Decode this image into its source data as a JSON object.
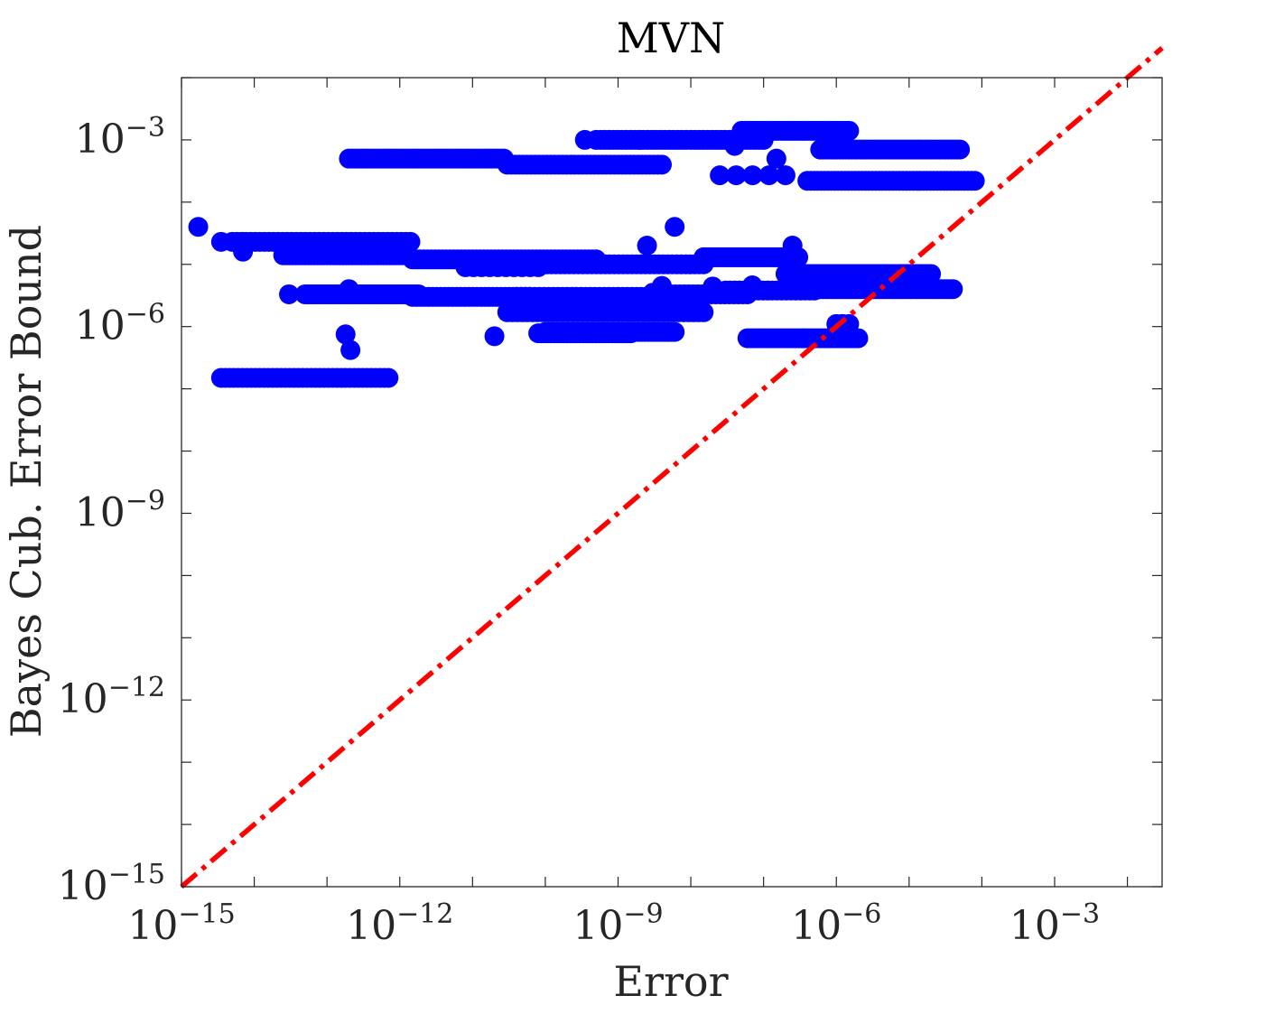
{
  "chart_data": {
    "type": "scatter",
    "title": "MVN",
    "xlabel": "Error",
    "ylabel": "Bayes Cub. Error Bound",
    "x_scale": "log",
    "y_scale": "log",
    "xlim": [
      1e-15,
      0.03
    ],
    "ylim": [
      1e-15,
      0.01
    ],
    "x_major_ticks": [
      {
        "value": 1e-15,
        "base": "10",
        "exp": "−15"
      },
      {
        "value": 1e-12,
        "base": "10",
        "exp": "−12"
      },
      {
        "value": 1e-09,
        "base": "10",
        "exp": "−9"
      },
      {
        "value": 1e-06,
        "base": "10",
        "exp": "−6"
      },
      {
        "value": 0.001,
        "base": "10",
        "exp": "−3"
      }
    ],
    "y_major_ticks": [
      {
        "value": 1e-15,
        "base": "10",
        "exp": "−15"
      },
      {
        "value": 1e-12,
        "base": "10",
        "exp": "−12"
      },
      {
        "value": 1e-09,
        "base": "10",
        "exp": "−9"
      },
      {
        "value": 1e-06,
        "base": "10",
        "exp": "−6"
      },
      {
        "value": 0.001,
        "base": "10",
        "exp": "−3"
      }
    ],
    "grid": false,
    "legend": "none",
    "series": [
      {
        "kind": "scatter",
        "color": "#0000ff",
        "marker": "filled-circle",
        "segments": [
          {
            "x": [
              5e-15,
              1.4e-12
            ],
            "y": 2.3e-05,
            "n": 40
          },
          {
            "x": [
              3.5e-15,
              7e-15
            ],
            "y": 2.3e-05,
            "n": 2
          },
          {
            "x": [
              2.5e-14,
              1.2e-12
            ],
            "y": 1.4e-05,
            "n": 40
          },
          {
            "x": [
              1.5e-12,
              5e-10
            ],
            "y": 1.2e-05,
            "n": 50
          },
          {
            "x": [
              8e-12,
              8e-11
            ],
            "y": 9e-06,
            "n": 10
          },
          {
            "x": [
              6e-11,
              1.5e-08
            ],
            "y": 1e-05,
            "n": 40
          },
          {
            "x": [
              1.5e-08,
              3e-07
            ],
            "y": 1.3e-05,
            "n": 40
          },
          {
            "x": [
              2e-07,
              2e-05
            ],
            "y": 7e-06,
            "n": 50
          },
          {
            "x": [
              5e-07,
              4e-05
            ],
            "y": 4e-06,
            "n": 50
          },
          {
            "x": [
              3e-08,
              5e-07
            ],
            "y": 3.8e-06,
            "n": 20
          },
          {
            "x": [
              4e-09,
              6e-08
            ],
            "y": 3.3e-06,
            "n": 20
          },
          {
            "x": [
              5e-14,
              1.8e-12
            ],
            "y": 3.3e-06,
            "n": 40
          },
          {
            "x": [
              4e-11,
              1.2e-08
            ],
            "y": 3e-06,
            "n": 40
          },
          {
            "x": [
              1.5e-12,
              6e-11
            ],
            "y": 3e-06,
            "n": 30
          },
          {
            "x": [
              3e-11,
              1.5e-08
            ],
            "y": 1.7e-06,
            "n": 40
          },
          {
            "x": [
              1e-10,
              6e-09
            ],
            "y": 8.2e-07,
            "n": 40
          },
          {
            "x": [
              8e-11,
              1.5e-09
            ],
            "y": 7.8e-07,
            "n": 30
          },
          {
            "x": [
              6e-08,
              2e-06
            ],
            "y": 6.5e-07,
            "n": 40
          },
          {
            "x": [
              1e-06,
              1.5e-06
            ],
            "y": 1.1e-06,
            "n": 3
          },
          {
            "x": [
              3.5e-15,
              7e-13
            ],
            "y": 1.5e-07,
            "n": 40
          },
          {
            "x": [
              2e-13,
              2.7e-11
            ],
            "y": 0.0005,
            "n": 50
          },
          {
            "x": [
              3e-11,
              4e-09
            ],
            "y": 0.0004,
            "n": 40
          },
          {
            "x": [
              5e-10,
              1e-07
            ],
            "y": 0.001,
            "n": 40
          },
          {
            "x": [
              5e-08,
              1.5e-06
            ],
            "y": 0.0014,
            "n": 40
          },
          {
            "x": [
              6e-07,
              5e-05
            ],
            "y": 0.0007,
            "n": 50
          },
          {
            "x": [
              4e-07,
              8e-05
            ],
            "y": 0.00022,
            "n": 50
          },
          {
            "x": [
              2.5e-08,
              2e-07
            ],
            "y": 0.00027,
            "n": 5
          }
        ],
        "points": [
          [
            1.7e-15,
            4e-05
          ],
          [
            7e-15,
            1.6e-05
          ],
          [
            3e-14,
            3.3e-06
          ],
          [
            2e-13,
            4e-06
          ],
          [
            1.8e-13,
            7.5e-07
          ],
          [
            2.1e-13,
            4.2e-07
          ],
          [
            2e-11,
            7e-07
          ],
          [
            3.5e-10,
            0.001
          ],
          [
            2e-09,
            0.001
          ],
          [
            2.5e-09,
            2e-05
          ],
          [
            3e-09,
            3.5e-06
          ],
          [
            4e-09,
            4.5e-06
          ],
          [
            6e-09,
            4e-05
          ],
          [
            2e-08,
            4.4e-06
          ],
          [
            4e-08,
            0.0008
          ],
          [
            7e-08,
            4.6e-06
          ],
          [
            1.5e-07,
            0.0005
          ],
          [
            2.5e-07,
            2e-05
          ],
          [
            1.2e-06,
            1.1e-06
          ],
          [
            1.3e-06,
            8e-07
          ]
        ]
      },
      {
        "kind": "reference-line",
        "name": "",
        "color": "#ff0000",
        "style": "dash-dot",
        "x": [
          1e-15,
          0.03
        ],
        "y": [
          1e-15,
          0.03
        ]
      }
    ]
  }
}
